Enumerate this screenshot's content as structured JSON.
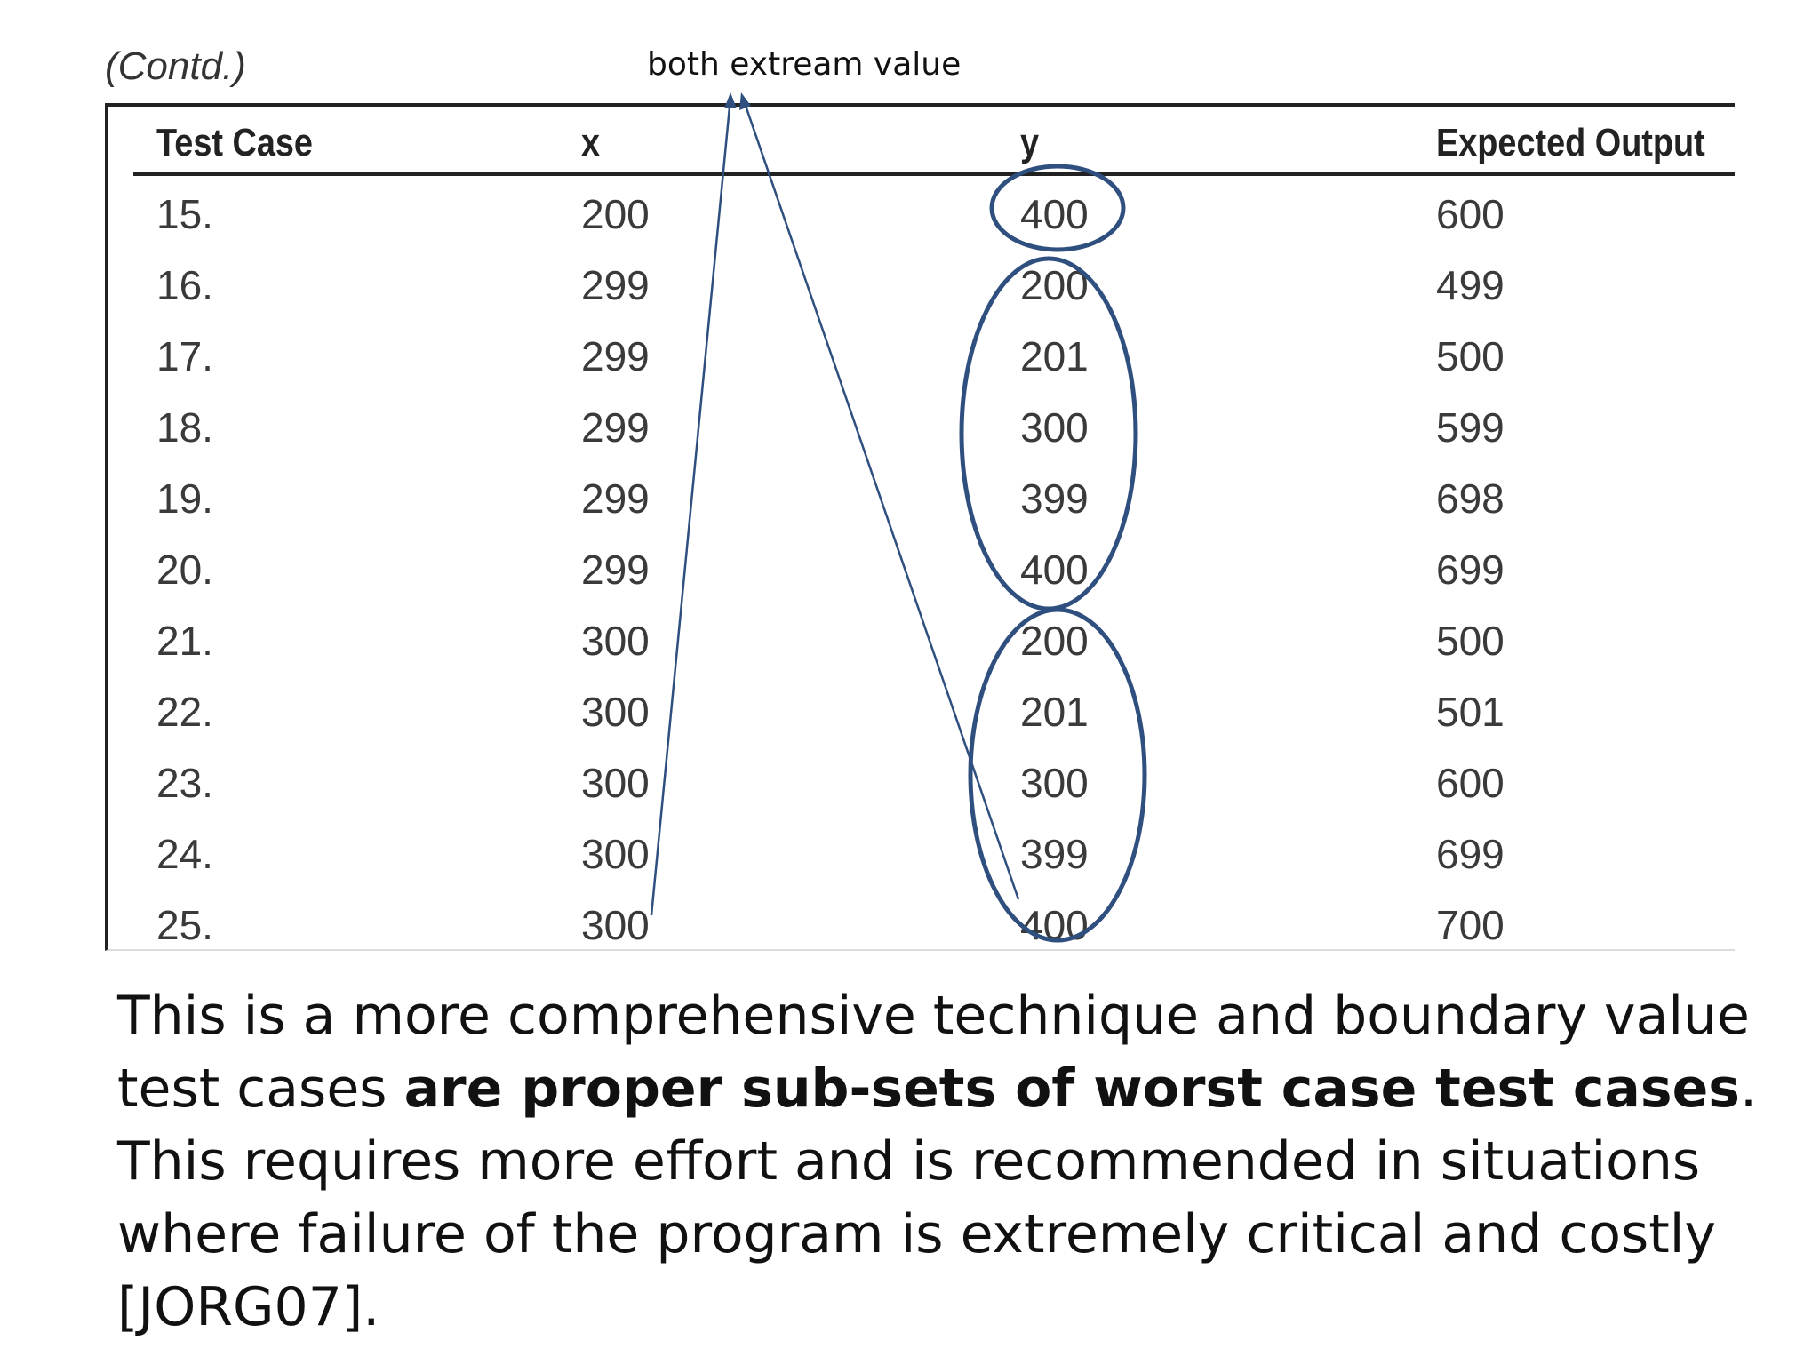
{
  "contd_label": "(Contd.)",
  "annotation": {
    "label": "both extream value"
  },
  "table": {
    "headers": [
      "Test Case",
      "x",
      "y",
      "Expected Output"
    ],
    "rows": [
      [
        "15.",
        "200",
        "400",
        "600"
      ],
      [
        "16.",
        "299",
        "200",
        "499"
      ],
      [
        "17.",
        "299",
        "201",
        "500"
      ],
      [
        "18.",
        "299",
        "300",
        "599"
      ],
      [
        "19.",
        "299",
        "399",
        "698"
      ],
      [
        "20.",
        "299",
        "400",
        "699"
      ],
      [
        "21.",
        "300",
        "200",
        "500"
      ],
      [
        "22.",
        "300",
        "201",
        "501"
      ],
      [
        "23.",
        "300",
        "300",
        "600"
      ],
      [
        "24.",
        "300",
        "399",
        "699"
      ],
      [
        "25.",
        "300",
        "400",
        "700"
      ]
    ]
  },
  "paragraph": {
    "part1": "This is a more comprehensive technique and boundary value test cases ",
    "bold": "are proper sub-sets of worst case test cases",
    "part2": ".",
    "line2": "This requires more effort and is recommended in situations where failure of the program is extremely critical and costly [JORG07]."
  },
  "colors": {
    "annotation": "#2f4f7f",
    "text": "#111111",
    "table_text": "#3a3a3a"
  }
}
